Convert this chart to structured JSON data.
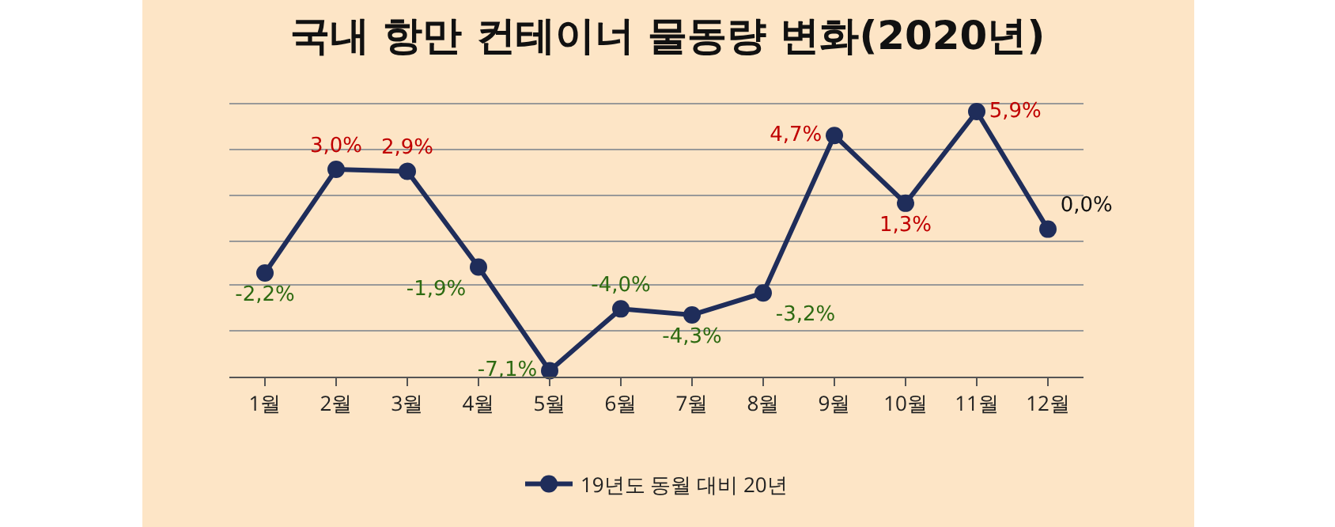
{
  "chart_data": {
    "type": "line",
    "title": "국내 항만 컨테이너 물동량 변화(2020년)",
    "categories": [
      "1월",
      "2월",
      "3월",
      "4월",
      "5월",
      "6월",
      "7월",
      "8월",
      "9월",
      "10월",
      "11월",
      "12월"
    ],
    "series": [
      {
        "name": "19년도 동월 대비 20년",
        "color": "#1f2d5a",
        "values": [
          -2.2,
          3.0,
          2.9,
          -1.9,
          -7.1,
          -4.0,
          -4.3,
          -3.2,
          4.7,
          1.3,
          5.9,
          0.0
        ],
        "value_labels": [
          "-2,2%",
          "3,0%",
          "2,9%",
          "-1,9%",
          "-7,1%",
          "-4,0%",
          "-4,3%",
          "-3,2%",
          "4,7%",
          "1,3%",
          "5,9%",
          "0,0%"
        ]
      }
    ],
    "yticks": [
      {
        "value": -7.4,
        "label": null
      },
      {
        "value": -5.1,
        "label": null
      },
      {
        "value": -2.8,
        "label": null
      },
      {
        "value": -0.6,
        "label": null
      },
      {
        "value": 1.7,
        "label": null
      },
      {
        "value": 4.0,
        "label": null
      },
      {
        "value": 6.3,
        "label": null
      }
    ],
    "grid": "y",
    "legend": "bottom",
    "marker": "circle",
    "line_style": "solid"
  }
}
